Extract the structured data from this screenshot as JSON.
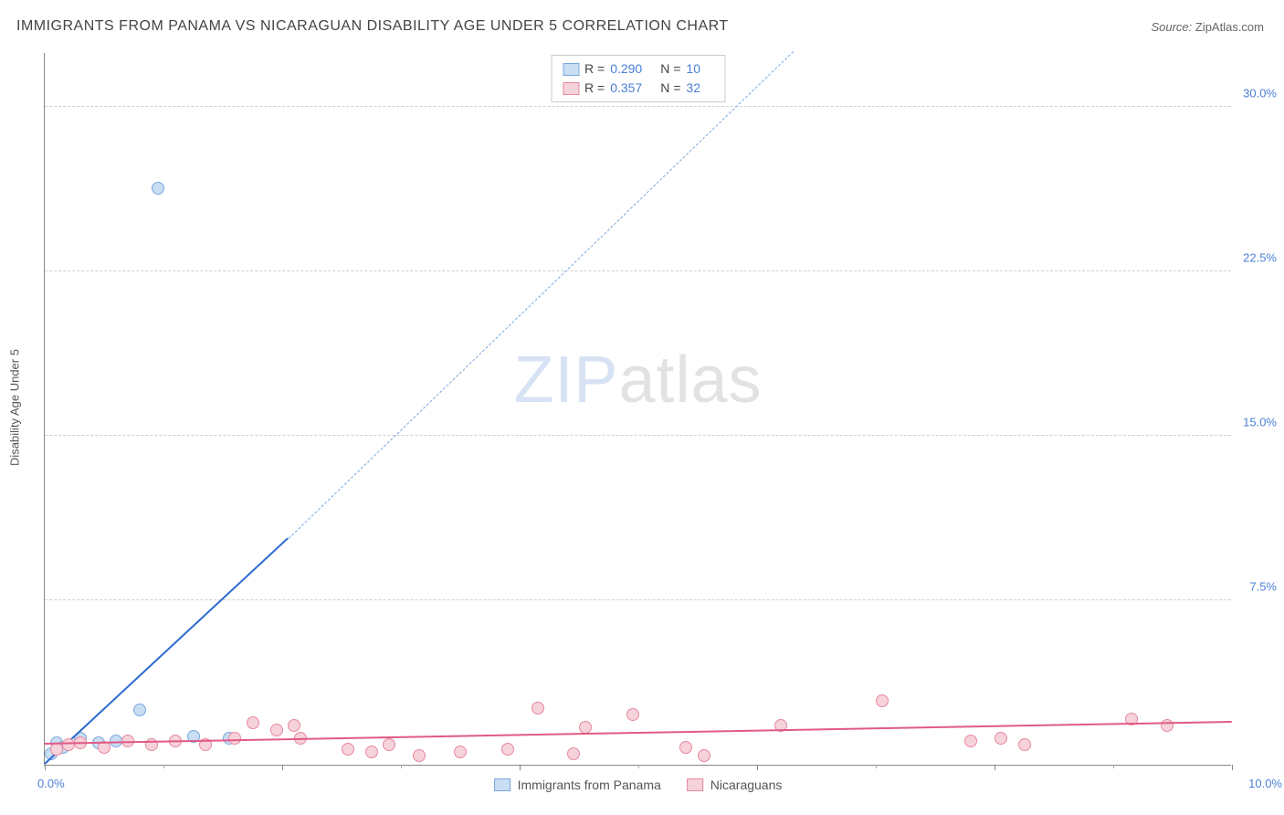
{
  "title": "IMMIGRANTS FROM PANAMA VS NICARAGUAN DISABILITY AGE UNDER 5 CORRELATION CHART",
  "source_prefix": "Source: ",
  "source_name": "ZipAtlas.com",
  "ylabel": "Disability Age Under 5",
  "watermark_a": "ZIP",
  "watermark_b": "atlas",
  "chart": {
    "type": "scatter",
    "background_color": "#ffffff",
    "grid_color": "#d0d0d0",
    "axis_color": "#888888",
    "label_color": "#4a7fd6",
    "xlim": [
      0.0,
      10.0
    ],
    "ylim": [
      0.0,
      32.5
    ],
    "ytick_step": 7.5,
    "yticks": [
      7.5,
      15.0,
      22.5,
      30.0
    ],
    "ytick_labels": [
      "7.5%",
      "15.0%",
      "22.5%",
      "30.0%"
    ],
    "x_origin_label": "0.0%",
    "x_max_label": "10.0%",
    "xtick_major": [
      0,
      2,
      4,
      6,
      8,
      10
    ],
    "xtick_minor": [
      1,
      3,
      5,
      7,
      9
    ],
    "marker_radius": 7,
    "marker_stroke_width": 1.5,
    "series": [
      {
        "id": "panama",
        "label": "Immigrants from Panama",
        "fill": "#c9ddf3",
        "stroke": "#7aa8dd",
        "trend_color": "#2e6bd1",
        "trend_dash_color": "#7aa8dd",
        "R_label": "R = ",
        "R": "0.290",
        "N_label": "N = ",
        "N": "10",
        "trend": {
          "x0": 0.0,
          "y0": 0.0,
          "x1": 2.05,
          "y1": 10.3,
          "dash_to_x": 6.3,
          "dash_to_y": 32.5
        },
        "points": [
          {
            "x": 0.05,
            "y": 0.5
          },
          {
            "x": 0.1,
            "y": 1.0
          },
          {
            "x": 0.15,
            "y": 0.8
          },
          {
            "x": 0.3,
            "y": 1.2
          },
          {
            "x": 0.45,
            "y": 1.0
          },
          {
            "x": 0.6,
            "y": 1.1
          },
          {
            "x": 0.8,
            "y": 2.5
          },
          {
            "x": 0.95,
            "y": 26.3
          },
          {
            "x": 1.25,
            "y": 1.3
          },
          {
            "x": 1.55,
            "y": 1.2
          }
        ]
      },
      {
        "id": "nicaraguans",
        "label": "Nicaraguans",
        "fill": "#f6d2da",
        "stroke": "#e688a0",
        "trend_color": "#e05a85",
        "R_label": "R = ",
        "R": "0.357",
        "N_label": "N = ",
        "N": "32",
        "trend": {
          "x0": 0.0,
          "y0": 0.9,
          "x1": 10.0,
          "y1": 1.9
        },
        "points": [
          {
            "x": 0.1,
            "y": 0.7
          },
          {
            "x": 0.2,
            "y": 0.9
          },
          {
            "x": 0.3,
            "y": 1.0
          },
          {
            "x": 0.5,
            "y": 0.8
          },
          {
            "x": 0.7,
            "y": 1.1
          },
          {
            "x": 0.9,
            "y": 0.9
          },
          {
            "x": 1.1,
            "y": 1.1
          },
          {
            "x": 1.35,
            "y": 0.9
          },
          {
            "x": 1.6,
            "y": 1.2
          },
          {
            "x": 1.75,
            "y": 1.9
          },
          {
            "x": 1.95,
            "y": 1.6
          },
          {
            "x": 2.1,
            "y": 1.8
          },
          {
            "x": 2.15,
            "y": 1.2
          },
          {
            "x": 2.55,
            "y": 0.7
          },
          {
            "x": 2.75,
            "y": 0.6
          },
          {
            "x": 2.9,
            "y": 0.9
          },
          {
            "x": 3.15,
            "y": 0.4
          },
          {
            "x": 3.5,
            "y": 0.6
          },
          {
            "x": 3.9,
            "y": 0.7
          },
          {
            "x": 4.15,
            "y": 2.6
          },
          {
            "x": 4.45,
            "y": 0.5
          },
          {
            "x": 4.55,
            "y": 1.7
          },
          {
            "x": 4.95,
            "y": 2.3
          },
          {
            "x": 5.4,
            "y": 0.8
          },
          {
            "x": 5.55,
            "y": 0.4
          },
          {
            "x": 6.2,
            "y": 1.8
          },
          {
            "x": 7.05,
            "y": 2.9
          },
          {
            "x": 7.8,
            "y": 1.1
          },
          {
            "x": 8.05,
            "y": 1.2
          },
          {
            "x": 8.25,
            "y": 0.9
          },
          {
            "x": 9.15,
            "y": 2.1
          },
          {
            "x": 9.45,
            "y": 1.8
          }
        ]
      }
    ]
  }
}
